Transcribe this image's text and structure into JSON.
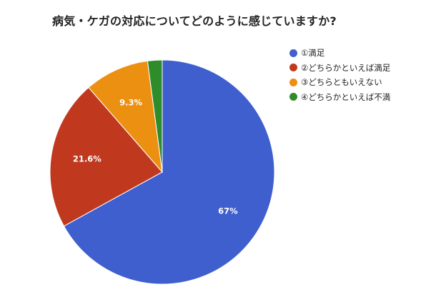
{
  "chart_data": {
    "type": "pie",
    "title": "病気・ケガの対応についてどのように感じていますか?",
    "categories": [
      "①満足",
      "②どちらかといえば満足",
      "③どちらともいえない",
      "④どちらかといえば不満"
    ],
    "values": [
      67,
      21.6,
      9.3,
      2.1
    ],
    "value_labels": [
      "67%",
      "21.6%",
      "9.3%",
      ""
    ],
    "colors": [
      "#3f5fce",
      "#c0391f",
      "#ec9011",
      "#2e8c2a"
    ],
    "legend_position": "right"
  }
}
